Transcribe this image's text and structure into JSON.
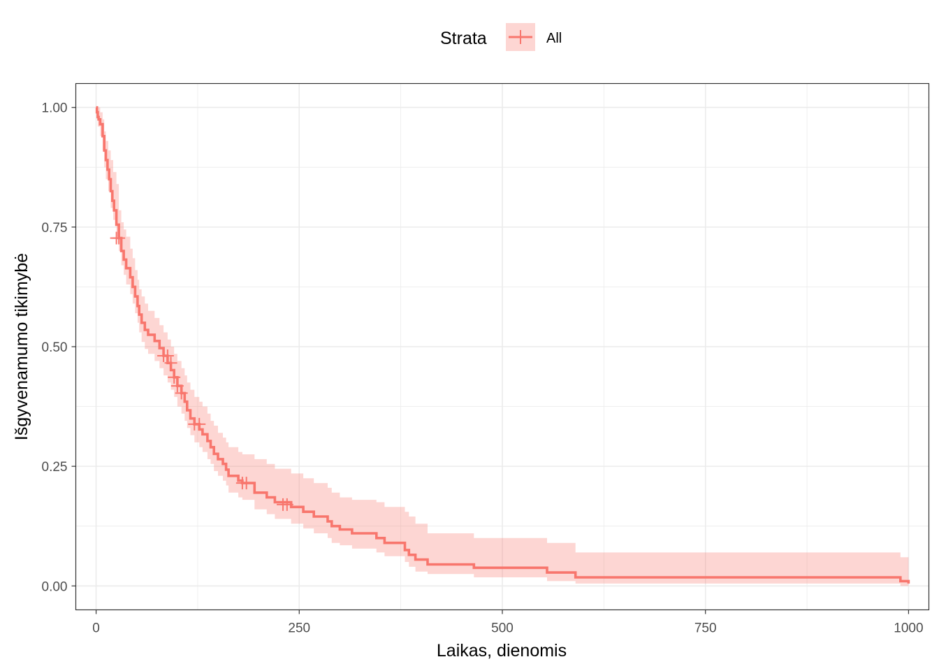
{
  "chart_data": {
    "type": "line",
    "title": "",
    "xlabel": "Laikas, dienomis",
    "ylabel": "Išgyvenamumo tikimybė",
    "xlim": [
      -25,
      1025
    ],
    "ylim": [
      -0.05,
      1.05
    ],
    "x_ticks": [
      0,
      250,
      500,
      750,
      1000
    ],
    "x_tick_labels": [
      "0",
      "250",
      "500",
      "750",
      "1000"
    ],
    "y_ticks": [
      0,
      0.25,
      0.5,
      0.75,
      1
    ],
    "y_tick_labels": [
      "0.00",
      "0.25",
      "0.50",
      "0.75",
      "1.00"
    ],
    "grid": true,
    "legend": {
      "title": "Strata",
      "position": "top",
      "entries": [
        "All"
      ]
    },
    "colors": {
      "line": "#F8766D",
      "band": "#F8766D"
    },
    "series": [
      {
        "name": "All",
        "steps": [
          [
            0,
            1.0
          ],
          [
            1,
            0.99
          ],
          [
            2,
            0.98
          ],
          [
            3,
            0.975
          ],
          [
            5,
            0.965
          ],
          [
            8,
            0.94
          ],
          [
            10,
            0.91
          ],
          [
            12,
            0.89
          ],
          [
            14,
            0.87
          ],
          [
            16,
            0.85
          ],
          [
            18,
            0.825
          ],
          [
            20,
            0.805
          ],
          [
            22,
            0.785
          ],
          [
            25,
            0.755
          ],
          [
            28,
            0.727
          ],
          [
            31,
            0.7
          ],
          [
            34,
            0.682
          ],
          [
            37,
            0.664
          ],
          [
            42,
            0.645
          ],
          [
            45,
            0.625
          ],
          [
            48,
            0.605
          ],
          [
            51,
            0.585
          ],
          [
            53,
            0.567
          ],
          [
            56,
            0.55
          ],
          [
            60,
            0.535
          ],
          [
            64,
            0.525
          ],
          [
            72,
            0.512
          ],
          [
            78,
            0.497
          ],
          [
            83,
            0.481
          ],
          [
            88,
            0.466
          ],
          [
            92,
            0.451
          ],
          [
            96,
            0.436
          ],
          [
            100,
            0.418
          ],
          [
            105,
            0.403
          ],
          [
            109,
            0.385
          ],
          [
            112,
            0.367
          ],
          [
            116,
            0.35
          ],
          [
            121,
            0.338
          ],
          [
            127,
            0.327
          ],
          [
            131,
            0.317
          ],
          [
            137,
            0.303
          ],
          [
            141,
            0.29
          ],
          [
            145,
            0.276
          ],
          [
            150,
            0.265
          ],
          [
            156,
            0.255
          ],
          [
            160,
            0.243
          ],
          [
            163,
            0.23
          ],
          [
            175,
            0.22
          ],
          [
            180,
            0.215
          ],
          [
            195,
            0.195
          ],
          [
            210,
            0.185
          ],
          [
            220,
            0.175
          ],
          [
            240,
            0.165
          ],
          [
            255,
            0.155
          ],
          [
            268,
            0.145
          ],
          [
            285,
            0.135
          ],
          [
            290,
            0.125
          ],
          [
            300,
            0.118
          ],
          [
            315,
            0.11
          ],
          [
            345,
            0.1
          ],
          [
            355,
            0.09
          ],
          [
            380,
            0.075
          ],
          [
            385,
            0.065
          ],
          [
            393,
            0.055
          ],
          [
            408,
            0.045
          ],
          [
            465,
            0.038
          ],
          [
            555,
            0.028
          ],
          [
            590,
            0.018
          ],
          [
            990,
            0.01
          ],
          [
            1000,
            0.005
          ]
        ],
        "lower": [
          [
            0,
            1.0
          ],
          [
            2,
            0.96
          ],
          [
            5,
            0.94
          ],
          [
            8,
            0.91
          ],
          [
            10,
            0.875
          ],
          [
            12,
            0.85
          ],
          [
            15,
            0.825
          ],
          [
            18,
            0.79
          ],
          [
            21,
            0.765
          ],
          [
            25,
            0.73
          ],
          [
            28,
            0.7
          ],
          [
            31,
            0.67
          ],
          [
            34,
            0.65
          ],
          [
            37,
            0.63
          ],
          [
            42,
            0.61
          ],
          [
            45,
            0.59
          ],
          [
            48,
            0.57
          ],
          [
            51,
            0.55
          ],
          [
            53,
            0.53
          ],
          [
            56,
            0.51
          ],
          [
            60,
            0.495
          ],
          [
            64,
            0.485
          ],
          [
            72,
            0.47
          ],
          [
            78,
            0.455
          ],
          [
            83,
            0.44
          ],
          [
            88,
            0.425
          ],
          [
            92,
            0.41
          ],
          [
            96,
            0.395
          ],
          [
            100,
            0.375
          ],
          [
            105,
            0.36
          ],
          [
            109,
            0.345
          ],
          [
            112,
            0.33
          ],
          [
            116,
            0.315
          ],
          [
            121,
            0.3
          ],
          [
            127,
            0.29
          ],
          [
            131,
            0.28
          ],
          [
            137,
            0.265
          ],
          [
            141,
            0.255
          ],
          [
            145,
            0.24
          ],
          [
            150,
            0.23
          ],
          [
            156,
            0.22
          ],
          [
            160,
            0.21
          ],
          [
            163,
            0.195
          ],
          [
            175,
            0.185
          ],
          [
            180,
            0.18
          ],
          [
            195,
            0.16
          ],
          [
            210,
            0.15
          ],
          [
            220,
            0.14
          ],
          [
            240,
            0.13
          ],
          [
            255,
            0.12
          ],
          [
            268,
            0.11
          ],
          [
            285,
            0.1
          ],
          [
            290,
            0.09
          ],
          [
            300,
            0.085
          ],
          [
            315,
            0.078
          ],
          [
            345,
            0.07
          ],
          [
            355,
            0.062
          ],
          [
            380,
            0.05
          ],
          [
            385,
            0.04
          ],
          [
            393,
            0.03
          ],
          [
            408,
            0.025
          ],
          [
            465,
            0.018
          ],
          [
            555,
            0.01
          ],
          [
            590,
            0.005
          ],
          [
            990,
            0.0
          ],
          [
            1000,
            0.0
          ]
        ],
        "upper": [
          [
            0,
            1.0
          ],
          [
            2,
            1.0
          ],
          [
            5,
            0.99
          ],
          [
            8,
            0.975
          ],
          [
            10,
            0.95
          ],
          [
            12,
            0.93
          ],
          [
            15,
            0.91
          ],
          [
            18,
            0.89
          ],
          [
            21,
            0.865
          ],
          [
            25,
            0.84
          ],
          [
            28,
            0.785
          ],
          [
            31,
            0.76
          ],
          [
            34,
            0.745
          ],
          [
            37,
            0.73
          ],
          [
            42,
            0.705
          ],
          [
            45,
            0.685
          ],
          [
            48,
            0.66
          ],
          [
            51,
            0.64
          ],
          [
            53,
            0.62
          ],
          [
            56,
            0.605
          ],
          [
            60,
            0.59
          ],
          [
            64,
            0.575
          ],
          [
            72,
            0.56
          ],
          [
            78,
            0.545
          ],
          [
            83,
            0.53
          ],
          [
            88,
            0.515
          ],
          [
            92,
            0.5
          ],
          [
            96,
            0.485
          ],
          [
            100,
            0.47
          ],
          [
            105,
            0.455
          ],
          [
            109,
            0.44
          ],
          [
            112,
            0.425
          ],
          [
            116,
            0.41
          ],
          [
            121,
            0.395
          ],
          [
            127,
            0.385
          ],
          [
            131,
            0.375
          ],
          [
            137,
            0.36
          ],
          [
            141,
            0.345
          ],
          [
            145,
            0.335
          ],
          [
            150,
            0.32
          ],
          [
            156,
            0.31
          ],
          [
            160,
            0.3
          ],
          [
            163,
            0.29
          ],
          [
            175,
            0.28
          ],
          [
            180,
            0.275
          ],
          [
            195,
            0.265
          ],
          [
            210,
            0.255
          ],
          [
            220,
            0.245
          ],
          [
            240,
            0.235
          ],
          [
            255,
            0.225
          ],
          [
            268,
            0.215
          ],
          [
            285,
            0.205
          ],
          [
            290,
            0.195
          ],
          [
            300,
            0.185
          ],
          [
            315,
            0.18
          ],
          [
            345,
            0.175
          ],
          [
            355,
            0.165
          ],
          [
            380,
            0.155
          ],
          [
            385,
            0.145
          ],
          [
            393,
            0.13
          ],
          [
            408,
            0.11
          ],
          [
            465,
            0.1
          ],
          [
            555,
            0.09
          ],
          [
            590,
            0.07
          ],
          [
            990,
            0.06
          ],
          [
            1000,
            0.055
          ]
        ],
        "censored": [
          [
            25,
            0.727
          ],
          [
            28,
            0.727
          ],
          [
            83,
            0.481
          ],
          [
            88,
            0.481
          ],
          [
            92,
            0.466
          ],
          [
            96,
            0.436
          ],
          [
            100,
            0.418
          ],
          [
            105,
            0.403
          ],
          [
            121,
            0.338
          ],
          [
            127,
            0.338
          ],
          [
            180,
            0.215
          ],
          [
            185,
            0.215
          ],
          [
            230,
            0.17
          ],
          [
            235,
            0.17
          ]
        ]
      }
    ]
  }
}
